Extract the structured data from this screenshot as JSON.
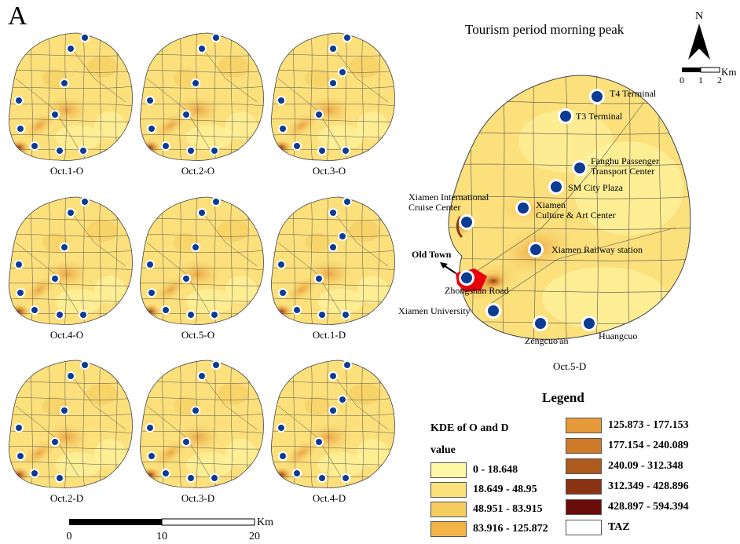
{
  "panel_letter": "A",
  "title": "Tourism period morning peak",
  "colors": {
    "c0": "#fff8a6",
    "c1": "#fbe07c",
    "c2": "#f6cd5f",
    "c3": "#f2b445",
    "c4": "#e79a3a",
    "c5": "#cf7a29",
    "c6": "#ad5a1c",
    "c7": "#8a3312",
    "c8": "#6a0d0a",
    "taz": "#ffffff",
    "pin": "#0b3c91",
    "hot": "#e8000b"
  },
  "small_maps": [
    {
      "label": "Oct.1-O"
    },
    {
      "label": "Oct.2-O"
    },
    {
      "label": "Oct.3-O"
    },
    {
      "label": "Oct.4-O"
    },
    {
      "label": "Oct.5-O"
    },
    {
      "label": "Oct.1-D"
    },
    {
      "label": "Oct.2-D"
    },
    {
      "label": "Oct.3-D"
    },
    {
      "label": "Oct.4-D"
    }
  ],
  "large_map": {
    "label": "Oct.5-D",
    "old_town": "Old Town",
    "stations": [
      {
        "name": "T4 Terminal"
      },
      {
        "name": "T3 Terminal"
      },
      {
        "name_1": "Fanghu Passenger",
        "name_2": "Transport Center"
      },
      {
        "name": "SM City Plaza"
      },
      {
        "name_1": "Xiamen",
        "name_2": "Culture & Art Center"
      },
      {
        "name_1": "Xiamen International",
        "name_2": "Cruise Center"
      },
      {
        "name": "Xiamen Railway station"
      },
      {
        "name": "Zhongshan Road"
      },
      {
        "name": "Xiamen University"
      },
      {
        "name": "Zengcuo'an"
      },
      {
        "name": "Huangcuo"
      }
    ]
  },
  "north_label": "N",
  "scale_small": {
    "ticks": [
      "0",
      "1",
      "2"
    ],
    "unit": "Km"
  },
  "scale_big": {
    "ticks": [
      "0",
      "10",
      "20"
    ],
    "unit": "Km"
  },
  "legend": {
    "title": "Legend",
    "subtitle_1": "KDE of O and D",
    "subtitle_2": "value",
    "classes": [
      {
        "label": "0 - 18.648"
      },
      {
        "label": "18.649 - 48.95"
      },
      {
        "label": "48.951 - 83.915"
      },
      {
        "label": "83.916 - 125.872"
      },
      {
        "label": "125.873 - 177.153"
      },
      {
        "label": "177.154 - 240.089"
      },
      {
        "label": "240.09 - 312.348"
      },
      {
        "label": "312.349 - 428.896"
      },
      {
        "label": "428.897 - 594.394"
      },
      {
        "label": "TAZ"
      }
    ]
  }
}
